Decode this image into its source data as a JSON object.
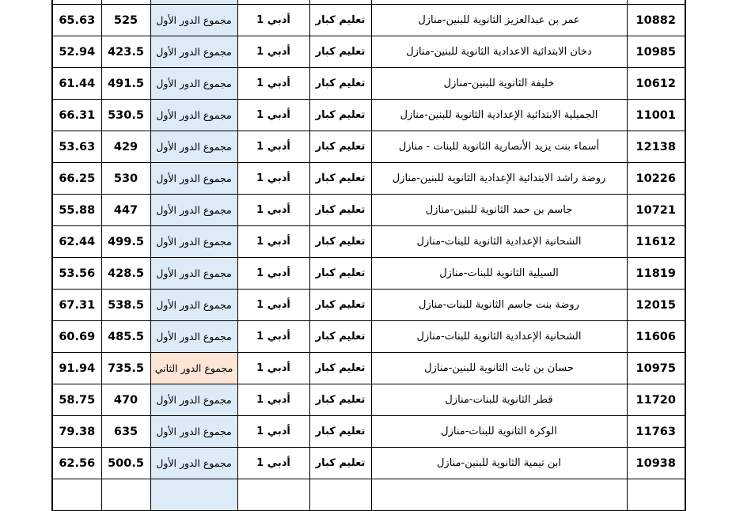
{
  "table": {
    "rows": [
      {
        "id": "10882",
        "school": "عمر بن عبدالعزيز الثانوية للبنين-منازل",
        "type": "تعليم كبار",
        "track": "أدبي 1",
        "round": "مجموع الدور الأول",
        "total": "525",
        "percent": "65.63"
      },
      {
        "id": "10985",
        "school": "دخان الابتدائية الاعدادية الثانوية للبنين-منازل",
        "type": "تعليم كبار",
        "track": "أدبي 1",
        "round": "مجموع الدور الأول",
        "total": "423.5",
        "percent": "52.94"
      },
      {
        "id": "10612",
        "school": "خليفة الثانوية للبنين-منازل",
        "type": "تعليم كبار",
        "track": "أدبي 1",
        "round": "مجموع الدور الأول",
        "total": "491.5",
        "percent": "61.44"
      },
      {
        "id": "11001",
        "school": "الجميلية الابتدائية الإعدادية الثانوية للبنين-منازل",
        "type": "تعليم كبار",
        "track": "أدبي 1",
        "round": "مجموع الدور الأول",
        "total": "530.5",
        "percent": "66.31"
      },
      {
        "id": "12138",
        "school": "أسماء بنت يزيد الأنصارية الثانوية للبنات - منازل",
        "type": "تعليم كبار",
        "track": "أدبي 1",
        "round": "مجموع الدور الأول",
        "total": "429",
        "percent": "53.63"
      },
      {
        "id": "10226",
        "school": "روضة راشد الابتدائية الإعدادية الثانوية للبنين-منازل",
        "type": "تعليم كبار",
        "track": "أدبي 1",
        "round": "مجموع الدور الأول",
        "total": "530",
        "percent": "66.25"
      },
      {
        "id": "10721",
        "school": "جاسم بن حمد الثانوية للبنين-منازل",
        "type": "تعليم كبار",
        "track": "أدبي 1",
        "round": "مجموع الدور الأول",
        "total": "447",
        "percent": "55.88"
      },
      {
        "id": "11612",
        "school": "الشحانية الإعدادية الثانوية للبنات-منازل",
        "type": "تعليم كبار",
        "track": "أدبي 1",
        "round": "مجموع الدور الأول",
        "total": "499.5",
        "percent": "62.44"
      },
      {
        "id": "11819",
        "school": "السيلية الثانوية للبنات-منازل",
        "type": "تعليم كبار",
        "track": "أدبي 1",
        "round": "مجموع الدور الأول",
        "total": "428.5",
        "percent": "53.56"
      },
      {
        "id": "12015",
        "school": "روضة بنت جاسم الثانوية للبنات-منازل",
        "type": "تعليم كبار",
        "track": "أدبي 1",
        "round": "مجموع الدور الأول",
        "total": "538.5",
        "percent": "67.31"
      },
      {
        "id": "11606",
        "school": "الشحانية الإعدادية الثانوية للبنات-منازل",
        "type": "تعليم كبار",
        "track": "أدبي 1",
        "round": "مجموع الدور الأول",
        "total": "485.5",
        "percent": "60.69"
      },
      {
        "id": "10975",
        "school": "حسان بن ثابت الثانوية للبنين-منازل",
        "type": "تعليم كبار",
        "track": "أدبي 1",
        "round": "مجموع الدور الثاني",
        "total": "735.5",
        "percent": "91.94",
        "second_round": true
      },
      {
        "id": "11720",
        "school": "قطر الثانوية للبنات-منازل",
        "type": "تعليم كبار",
        "track": "أدبي 1",
        "round": "مجموع الدور الأول",
        "total": "470",
        "percent": "58.75"
      },
      {
        "id": "11763",
        "school": "الوكرة الثانوية للبنات-منازل",
        "type": "تعليم كبار",
        "track": "أدبي 1",
        "round": "مجموع الدور الأول",
        "total": "635",
        "percent": "79.38"
      },
      {
        "id": "10938",
        "school": "ابن تيمية الثانوية للبنين-منازل",
        "type": "تعليم كبار",
        "track": "أدبي 1",
        "round": "مجموع الدور الأول",
        "total": "500.5",
        "percent": "62.56"
      }
    ],
    "colors": {
      "first_round_bg": "#ddebf7",
      "second_round_bg": "#fce4d6"
    }
  }
}
